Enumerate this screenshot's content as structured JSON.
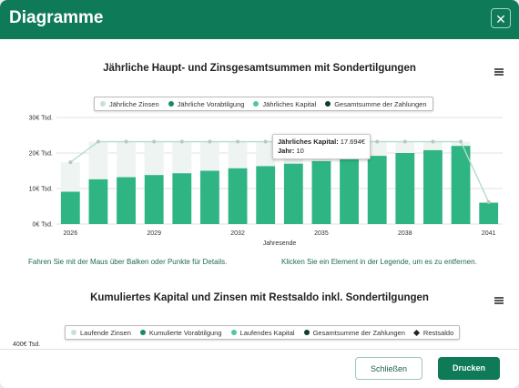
{
  "dialog": {
    "title": "Diagramme",
    "close_symbol": "✕"
  },
  "chart1": {
    "title": "Jährliche Haupt- und Zinsgesamtsummen mit Sondertilgungen",
    "legend": [
      {
        "label": "Jährliche Zinsen",
        "color": "#c9dfd6"
      },
      {
        "label": "Jährliche Vorabtilgung",
        "color": "#1b8a63"
      },
      {
        "label": "Jährliches Kapital",
        "color": "#4fc99a"
      },
      {
        "label": "Gesamtsumme der Zahlungen",
        "color": "#0d3d2e"
      }
    ],
    "y_ticks": [
      "30€ Tsd.",
      "20€ Tsd.",
      "10€ Tsd.",
      "0€ Tsd."
    ],
    "x_ticks": [
      "2026",
      "2029",
      "2032",
      "2035",
      "2038",
      "2041"
    ],
    "xlabel": "Jahresende",
    "tooltip": {
      "line1_label": "Jährliches Kapital:",
      "line1_value": "17.694€",
      "line2_label": "Jahr:",
      "line2_value": "10"
    },
    "hint_left": "Fahren Sie mit der Maus über Balken oder Punkte für Details.",
    "hint_right": "Klicken Sie ein Element in der Legende, um es zu entfernen."
  },
  "chart2": {
    "title": "Kumuliertes Kapital und Zinsen mit Restsaldo inkl. Sondertilgungen",
    "legend": [
      {
        "label": "Laufende Zinsen",
        "color": "#c9dfd6",
        "shape": "dot"
      },
      {
        "label": "Kumulierte Vorabtilgung",
        "color": "#1b8a63",
        "shape": "dot"
      },
      {
        "label": "Laufendes Kapital",
        "color": "#4fc99a",
        "shape": "dot"
      },
      {
        "label": "Gesamtsumme der Zahlungen",
        "color": "#0d3d2e",
        "shape": "dot"
      },
      {
        "label": "Restsaldo",
        "color": "#222222",
        "shape": "diamond"
      }
    ],
    "y_tick_top": "400€ Tsd."
  },
  "chart_data": {
    "type": "bar",
    "title": "Jährliche Haupt- und Zinsgesamtsummen mit Sondertilgungen",
    "xlabel": "Jahresende",
    "ylabel": "",
    "ylim": [
      0,
      30000
    ],
    "x": [
      2026,
      2027,
      2028,
      2029,
      2030,
      2031,
      2032,
      2033,
      2034,
      2035,
      2036,
      2037,
      2038,
      2039,
      2040,
      2041
    ],
    "series": [
      {
        "name": "Jährliches Kapital",
        "type": "bar",
        "color": "#2fb583",
        "values": [
          9100,
          12600,
          13200,
          13800,
          14300,
          15000,
          15700,
          16300,
          17000,
          17694,
          18500,
          19200,
          20000,
          20800,
          22000,
          6000
        ]
      },
      {
        "name": "Jährliche Zinsen",
        "type": "bar",
        "color": "#e6efeb",
        "values": [
          8300,
          10600,
          10000,
          9400,
          8900,
          8200,
          7500,
          6900,
          6200,
          5500,
          4700,
          4000,
          3200,
          2400,
          1200,
          200
        ]
      },
      {
        "name": "Gesamtsumme der Zahlungen",
        "type": "line",
        "color": "#b5dccb",
        "values": [
          17400,
          23200,
          23200,
          23200,
          23200,
          23200,
          23200,
          23200,
          23200,
          23200,
          23200,
          23200,
          23200,
          23200,
          23200,
          6200
        ]
      }
    ]
  },
  "footer": {
    "close_label": "Schließen",
    "print_label": "Drucken"
  }
}
